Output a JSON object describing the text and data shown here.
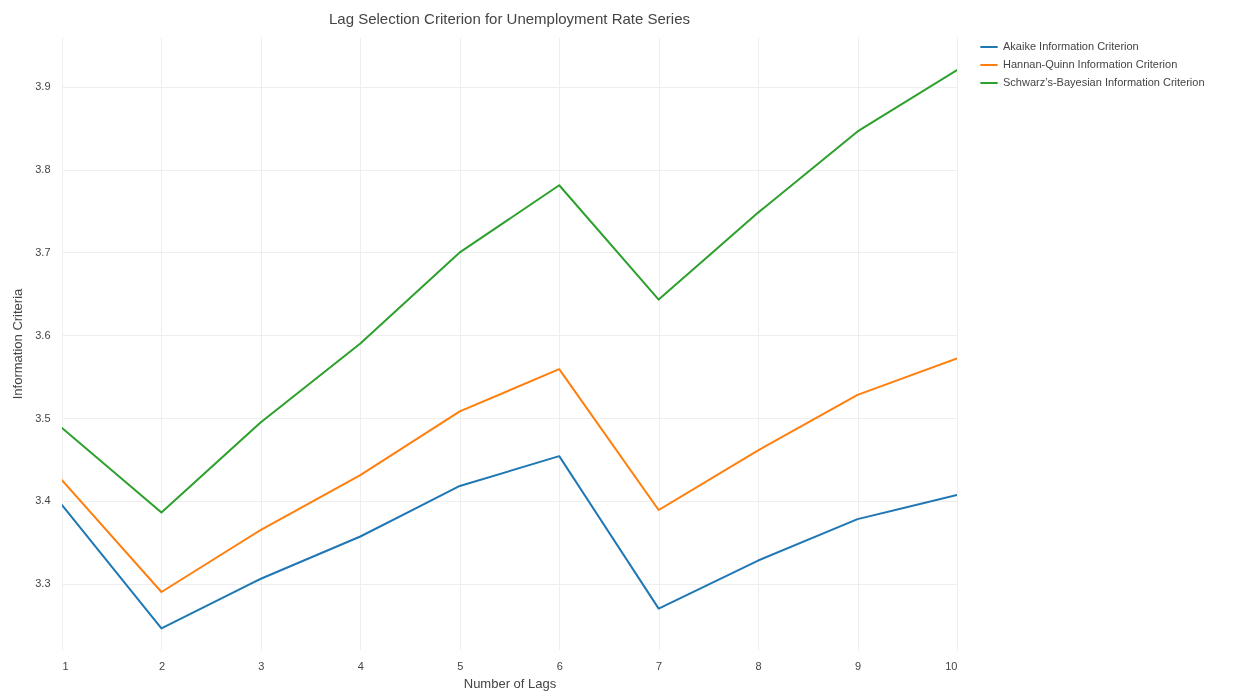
{
  "chart_data": {
    "type": "line",
    "title": "Lag Selection Criterion for Unemployment Rate Series",
    "xlabel": "Number of Lags",
    "ylabel": "Information Criteria",
    "x": [
      1,
      2,
      3,
      4,
      5,
      6,
      7,
      8,
      9,
      10
    ],
    "series": [
      {
        "name": "Akaike Information Criterion",
        "color": "#1f77b4",
        "values": [
          3.395,
          3.246,
          3.306,
          3.357,
          3.418,
          3.454,
          3.27,
          3.328,
          3.378,
          3.407
        ]
      },
      {
        "name": "Hannan-Quinn Information Criterion",
        "color": "#ff7f0e",
        "values": [
          3.425,
          3.29,
          3.365,
          3.431,
          3.508,
          3.559,
          3.389,
          3.461,
          3.528,
          3.572
        ]
      },
      {
        "name": "Schwarz’s-Bayesian Information Criterion",
        "color": "#2ca02c",
        "values": [
          3.488,
          3.386,
          3.495,
          3.59,
          3.7,
          3.781,
          3.643,
          3.748,
          3.846,
          3.92
        ]
      }
    ],
    "xlim": [
      1,
      10
    ],
    "xticks": [
      1,
      2,
      3,
      4,
      5,
      6,
      7,
      8,
      9,
      10
    ],
    "ylim": [
      3.22,
      3.96
    ],
    "yticks": [
      3.3,
      3.4,
      3.5,
      3.6,
      3.7,
      3.8,
      3.9
    ],
    "grid": true,
    "legend": "top right",
    "marker": "none",
    "line_style": "solid"
  }
}
